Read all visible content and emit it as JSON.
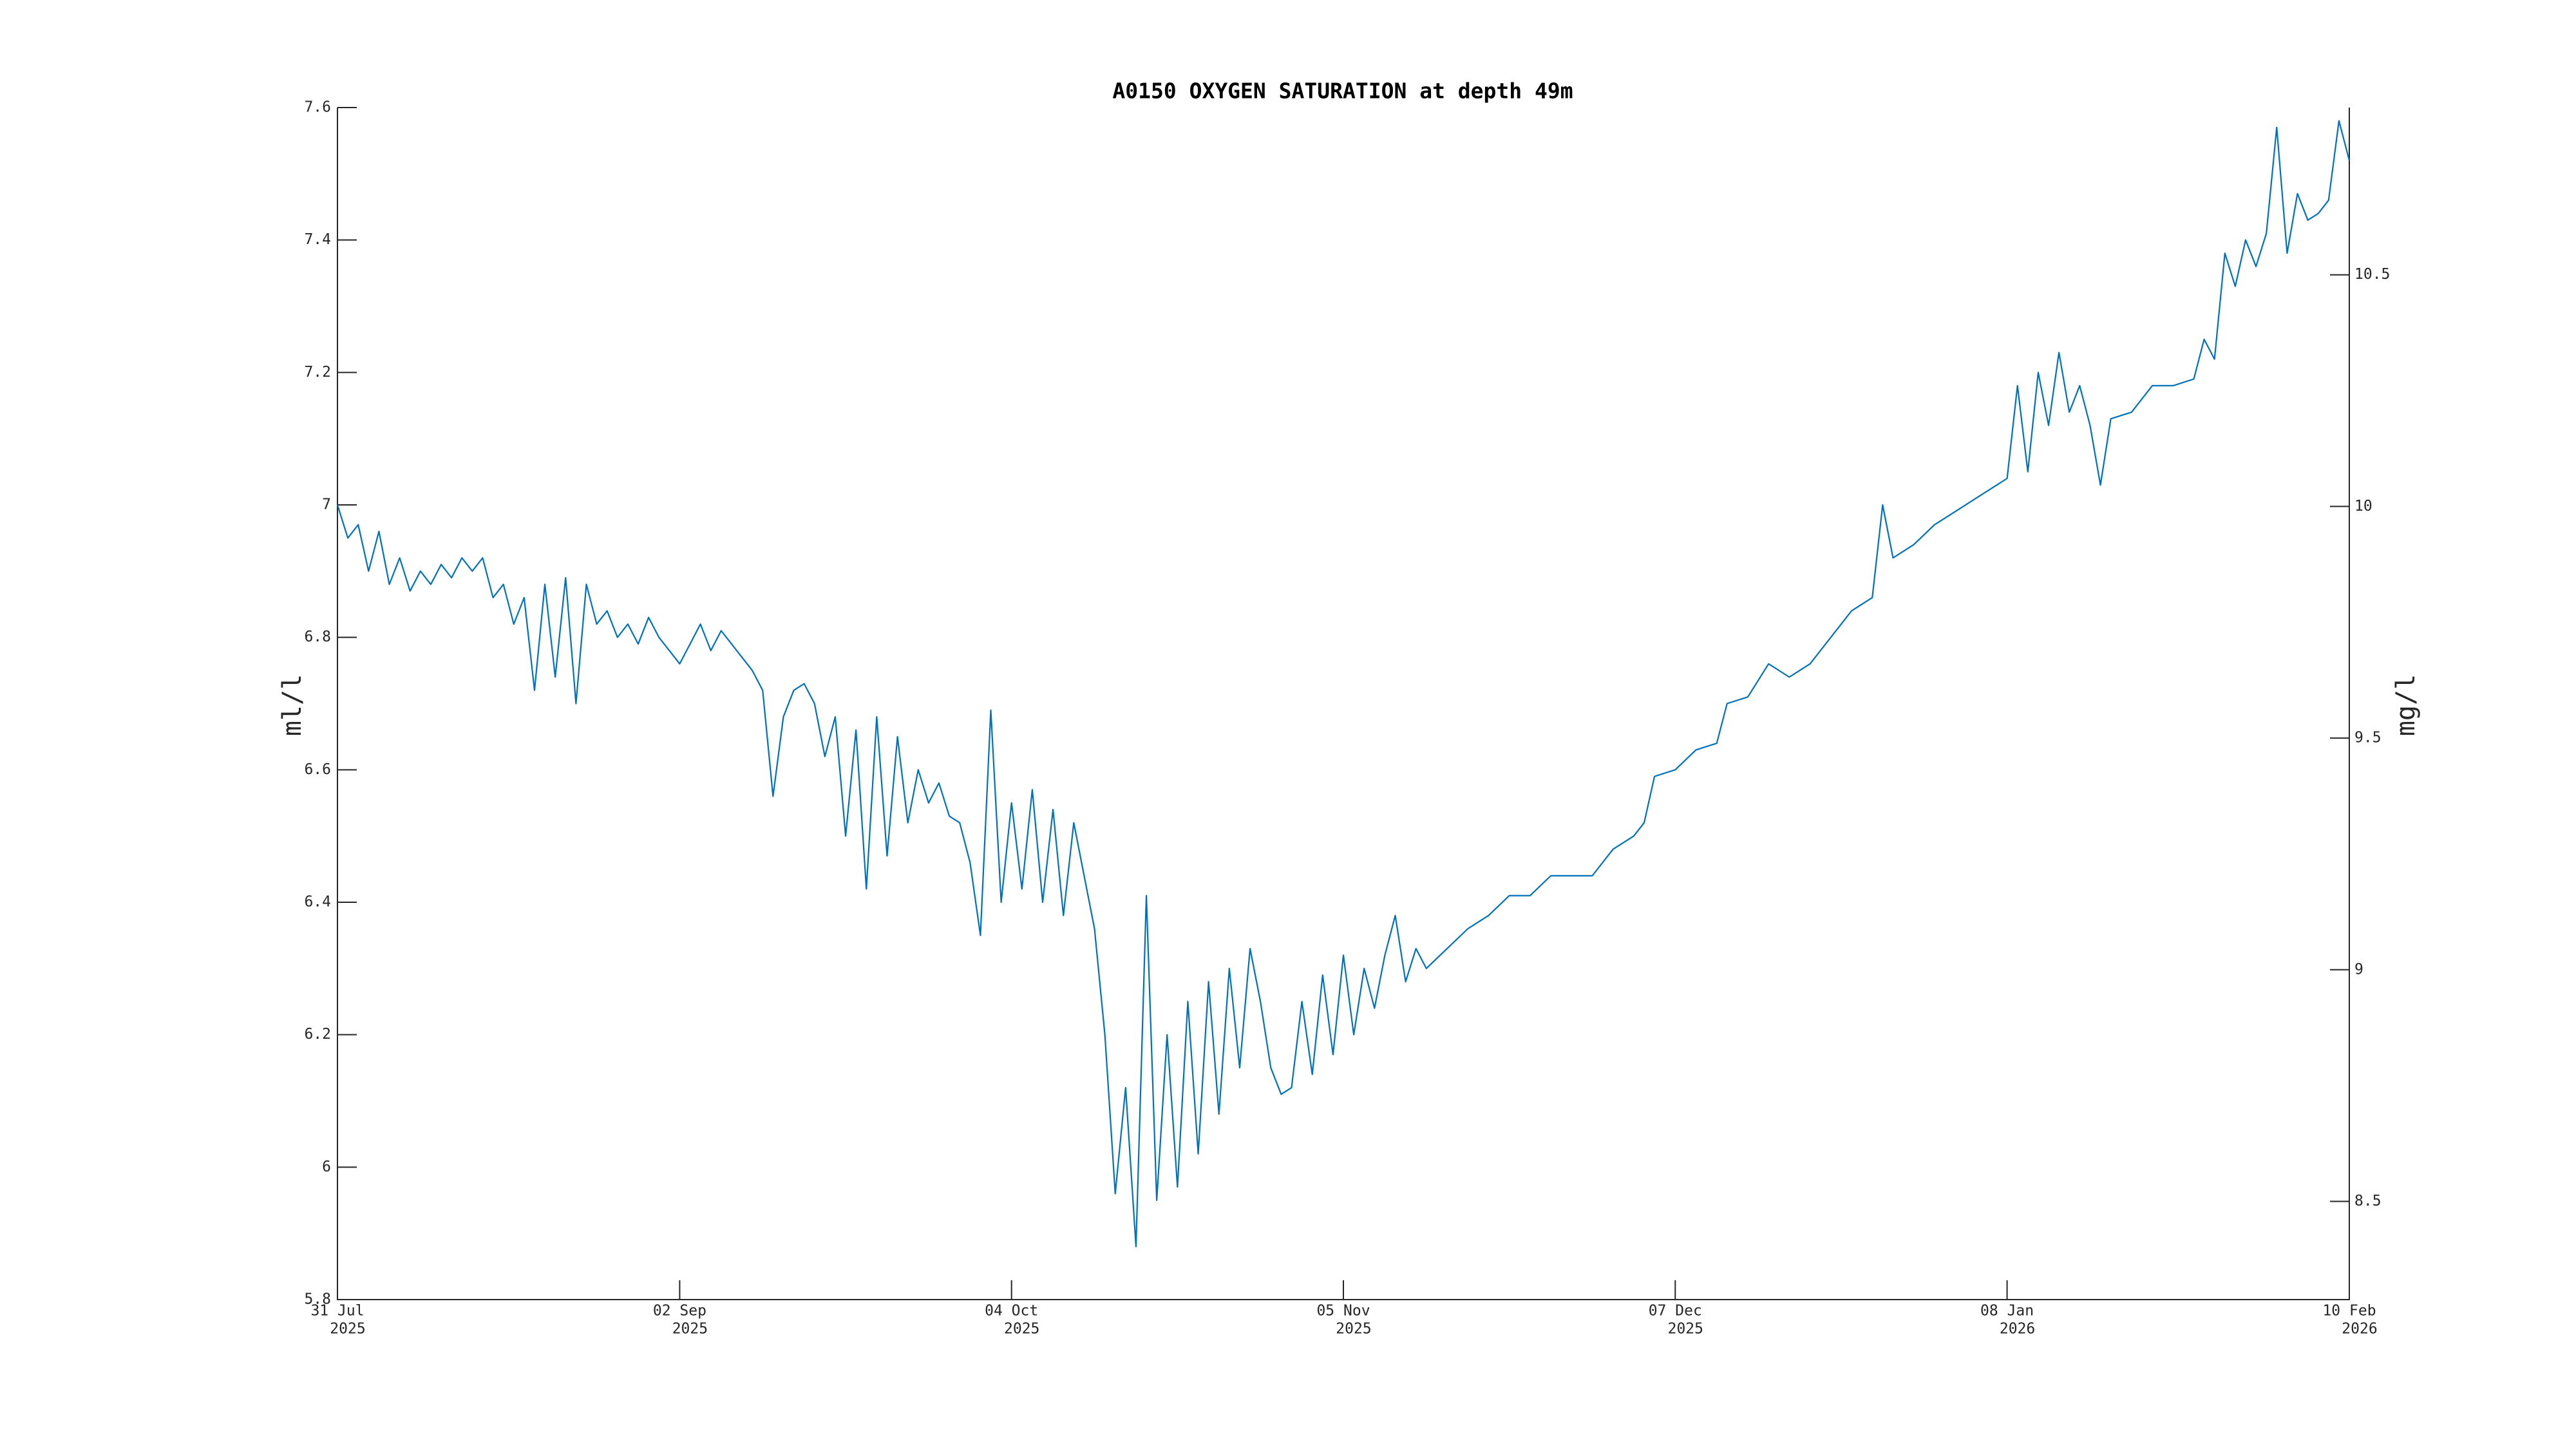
{
  "chart_data": {
    "type": "line",
    "title": "A0150 OXYGEN SATURATION at depth 49m",
    "ylabel": "ml/l",
    "y2label": "mg/l",
    "x": [
      "2025-07-31",
      "2025-08-01",
      "2025-08-02",
      "2025-08-03",
      "2025-08-04",
      "2025-08-05",
      "2025-08-06",
      "2025-08-07",
      "2025-08-08",
      "2025-08-09",
      "2025-08-10",
      "2025-08-11",
      "2025-08-12",
      "2025-08-13",
      "2025-08-14",
      "2025-08-15",
      "2025-08-16",
      "2025-08-17",
      "2025-08-18",
      "2025-08-19",
      "2025-08-20",
      "2025-08-21",
      "2025-08-22",
      "2025-08-23",
      "2025-08-24",
      "2025-08-25",
      "2025-08-26",
      "2025-08-27",
      "2025-08-28",
      "2025-08-29",
      "2025-08-30",
      "2025-08-31",
      "2025-09-01",
      "2025-09-02",
      "2025-09-03",
      "2025-09-04",
      "2025-09-05",
      "2025-09-06",
      "2025-09-07",
      "2025-09-08",
      "2025-09-09",
      "2025-09-10",
      "2025-09-11",
      "2025-09-12",
      "2025-09-13",
      "2025-09-14",
      "2025-09-15",
      "2025-09-16",
      "2025-09-17",
      "2025-09-18",
      "2025-09-19",
      "2025-09-20",
      "2025-09-21",
      "2025-09-22",
      "2025-09-23",
      "2025-09-24",
      "2025-09-25",
      "2025-09-26",
      "2025-09-27",
      "2025-09-28",
      "2025-09-29",
      "2025-09-30",
      "2025-10-01",
      "2025-10-02",
      "2025-10-03",
      "2025-10-04",
      "2025-10-05",
      "2025-10-06",
      "2025-10-07",
      "2025-10-08",
      "2025-10-09",
      "2025-10-10",
      "2025-10-11",
      "2025-10-12",
      "2025-10-13",
      "2025-10-14",
      "2025-10-15",
      "2025-10-16",
      "2025-10-17",
      "2025-10-18",
      "2025-10-19",
      "2025-10-20",
      "2025-10-21",
      "2025-10-22",
      "2025-10-23",
      "2025-10-24",
      "2025-10-25",
      "2025-10-26",
      "2025-10-27",
      "2025-10-28",
      "2025-10-29",
      "2025-10-30",
      "2025-10-31",
      "2025-11-01",
      "2025-11-02",
      "2025-11-03",
      "2025-11-04",
      "2025-11-05",
      "2025-11-06",
      "2025-11-07",
      "2025-11-08",
      "2025-11-09",
      "2025-11-10",
      "2025-11-11",
      "2025-11-12",
      "2025-11-13",
      "2025-11-15",
      "2025-11-17",
      "2025-11-19",
      "2025-11-21",
      "2025-11-23",
      "2025-11-25",
      "2025-11-27",
      "2025-11-29",
      "2025-12-01",
      "2025-12-03",
      "2025-12-04",
      "2025-12-05",
      "2025-12-07",
      "2025-12-09",
      "2025-12-11",
      "2025-12-12",
      "2025-12-14",
      "2025-12-16",
      "2025-12-18",
      "2025-12-20",
      "2025-12-22",
      "2025-12-24",
      "2025-12-26",
      "2025-12-27",
      "2025-12-28",
      "2025-12-30",
      "2026-01-01",
      "2026-01-03",
      "2026-01-05",
      "2026-01-07",
      "2026-01-08",
      "2026-01-09",
      "2026-01-10",
      "2026-01-11",
      "2026-01-12",
      "2026-01-13",
      "2026-01-14",
      "2026-01-15",
      "2026-01-16",
      "2026-01-17",
      "2026-01-18",
      "2026-01-20",
      "2026-01-22",
      "2026-01-24",
      "2026-01-26",
      "2026-01-27",
      "2026-01-28",
      "2026-01-29",
      "2026-01-30",
      "2026-01-31",
      "2026-02-01",
      "2026-02-02",
      "2026-02-03",
      "2026-02-04",
      "2026-02-05",
      "2026-02-06",
      "2026-02-07",
      "2026-02-08",
      "2026-02-09",
      "2026-02-10"
    ],
    "series": [
      {
        "color": "#0072bd",
        "values": [
          7.0,
          6.95,
          6.97,
          6.9,
          6.96,
          6.88,
          6.92,
          6.87,
          6.9,
          6.88,
          6.91,
          6.89,
          6.92,
          6.9,
          6.92,
          6.86,
          6.88,
          6.82,
          6.86,
          6.72,
          6.88,
          6.74,
          6.89,
          6.7,
          6.88,
          6.82,
          6.84,
          6.8,
          6.82,
          6.79,
          6.83,
          6.8,
          6.78,
          6.76,
          6.79,
          6.82,
          6.78,
          6.81,
          6.79,
          6.77,
          6.75,
          6.72,
          6.56,
          6.68,
          6.72,
          6.73,
          6.7,
          6.62,
          6.68,
          6.5,
          6.66,
          6.42,
          6.68,
          6.47,
          6.65,
          6.52,
          6.6,
          6.55,
          6.58,
          6.53,
          6.52,
          6.46,
          6.35,
          6.69,
          6.4,
          6.55,
          6.42,
          6.57,
          6.4,
          6.54,
          6.38,
          6.52,
          6.44,
          6.36,
          6.2,
          5.96,
          6.12,
          5.88,
          6.41,
          5.95,
          6.2,
          5.97,
          6.25,
          6.02,
          6.28,
          6.08,
          6.3,
          6.15,
          6.33,
          6.25,
          6.15,
          6.11,
          6.12,
          6.25,
          6.14,
          6.29,
          6.17,
          6.32,
          6.2,
          6.3,
          6.24,
          6.32,
          6.38,
          6.28,
          6.33,
          6.3,
          6.33,
          6.36,
          6.38,
          6.41,
          6.41,
          6.44,
          6.44,
          6.44,
          6.48,
          6.5,
          6.52,
          6.59,
          6.6,
          6.63,
          6.64,
          6.7,
          6.71,
          6.76,
          6.74,
          6.76,
          6.8,
          6.84,
          6.86,
          7.0,
          6.92,
          6.94,
          6.97,
          6.99,
          7.01,
          7.03,
          7.04,
          7.18,
          7.05,
          7.2,
          7.12,
          7.23,
          7.14,
          7.18,
          7.12,
          7.03,
          7.13,
          7.14,
          7.18,
          7.18,
          7.19,
          7.25,
          7.22,
          7.38,
          7.33,
          7.4,
          7.36,
          7.41,
          7.57,
          7.38,
          7.47,
          7.43,
          7.44,
          7.46,
          7.58,
          7.52
        ]
      }
    ],
    "xlim": [
      "2025-07-31",
      "2026-02-10"
    ],
    "xticks": [
      {
        "value": "2025-07-31",
        "label": [
          "31 Jul",
          "2025"
        ]
      },
      {
        "value": "2025-09-02",
        "label": [
          "02 Sep",
          "2025"
        ]
      },
      {
        "value": "2025-10-04",
        "label": [
          "04 Oct",
          "2025"
        ]
      },
      {
        "value": "2025-11-05",
        "label": [
          "05 Nov",
          "2025"
        ]
      },
      {
        "value": "2025-12-07",
        "label": [
          "07 Dec",
          "2025"
        ]
      },
      {
        "value": "2026-01-08",
        "label": [
          "08 Jan",
          "2026"
        ]
      },
      {
        "value": "2026-02-10",
        "label": [
          "10 Feb",
          "2026"
        ]
      }
    ],
    "ylim": [
      5.8,
      7.6
    ],
    "yticks": [
      5.8,
      6,
      6.2,
      6.4,
      6.6,
      6.8,
      7,
      7.2,
      7.4,
      7.6
    ],
    "y2lim": [
      8.288,
      10.861
    ],
    "y2ticks": [
      8.5,
      9,
      9.5,
      10,
      10.5
    ],
    "grid": false
  }
}
